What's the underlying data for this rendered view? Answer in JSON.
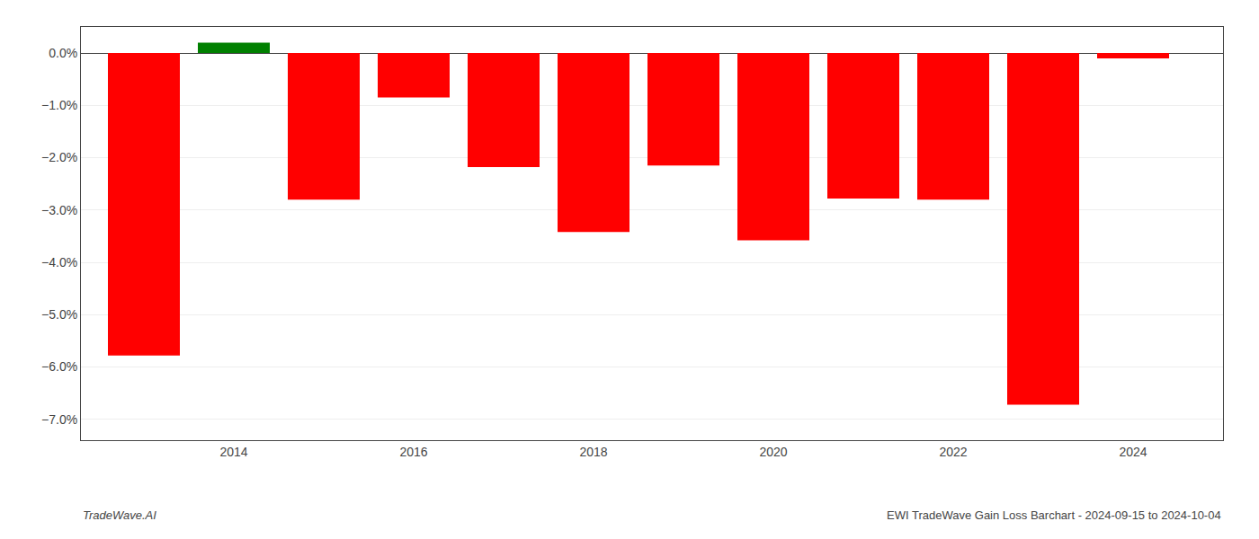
{
  "chart_data": {
    "type": "bar",
    "x": [
      2013,
      2014,
      2015,
      2016,
      2017,
      2018,
      2019,
      2020,
      2021,
      2022,
      2023,
      2024
    ],
    "values": [
      -5.78,
      0.2,
      -2.8,
      -0.85,
      -2.18,
      -3.42,
      -2.15,
      -3.58,
      -2.78,
      -2.8,
      -6.72,
      -0.1
    ],
    "colors": [
      "#ff0000",
      "#008000",
      "#ff0000",
      "#ff0000",
      "#ff0000",
      "#ff0000",
      "#ff0000",
      "#ff0000",
      "#ff0000",
      "#ff0000",
      "#ff0000",
      "#ff0000"
    ],
    "xlim": [
      2012.3,
      2025.0
    ],
    "xticks": [
      2014,
      2016,
      2018,
      2020,
      2022,
      2024
    ],
    "ylim": [
      -7.4,
      0.5
    ],
    "yticks": [
      {
        "value": 0.0,
        "label": "0.0%"
      },
      {
        "value": -1.0,
        "label": "−1.0%"
      },
      {
        "value": -2.0,
        "label": "−2.0%"
      },
      {
        "value": -3.0,
        "label": "−3.0%"
      },
      {
        "value": -4.0,
        "label": "−4.0%"
      },
      {
        "value": -5.0,
        "label": "−5.0%"
      },
      {
        "value": -6.0,
        "label": "−6.0%"
      },
      {
        "value": -7.0,
        "label": "−7.0%"
      }
    ],
    "grid": true,
    "annotations": [
      "TradeWave.AI",
      "EWI TradeWave Gain Loss Barchart - 2024-09-15 to 2024-10-04"
    ]
  }
}
